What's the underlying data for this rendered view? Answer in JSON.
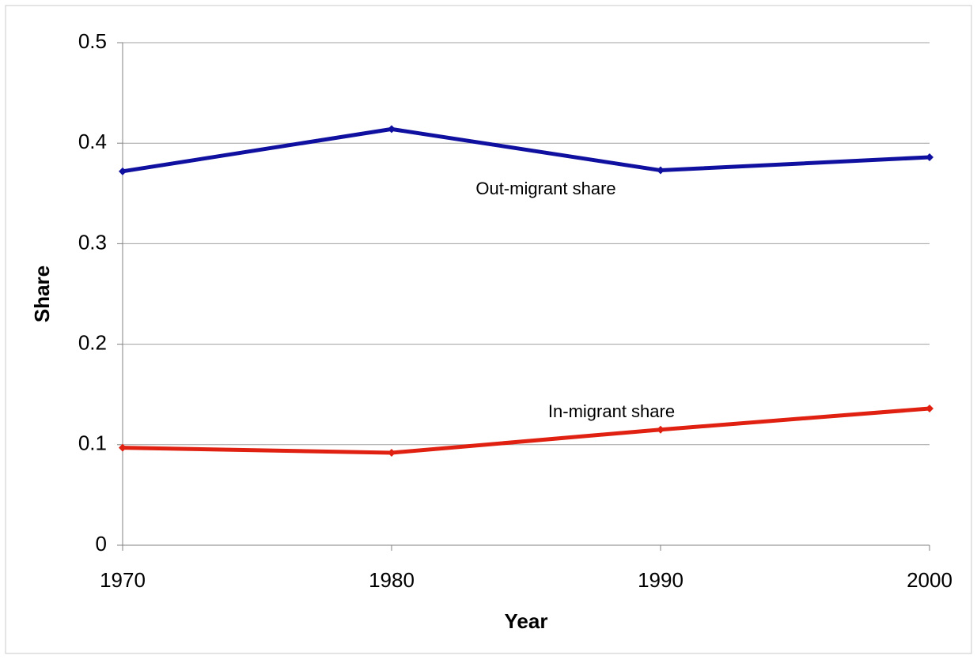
{
  "chart_data": {
    "type": "line",
    "x_label": "Year",
    "y_label": "Share",
    "x": [
      1970,
      1980,
      1990,
      2000
    ],
    "series": [
      {
        "name": "Out-migrant share",
        "color": "#1010a0",
        "values": [
          0.372,
          0.414,
          0.373,
          0.386
        ]
      },
      {
        "name": "In-migrant share",
        "color": "#e02010",
        "values": [
          0.097,
          0.092,
          0.115,
          0.136
        ]
      }
    ],
    "xlim": [
      1970,
      2000
    ],
    "xticks": [
      1970,
      1980,
      1990,
      2000
    ],
    "ylim": [
      0,
      0.5
    ],
    "yticks": [
      0,
      0.1,
      0.2,
      0.3,
      0.4,
      0.5
    ],
    "grid": true
  }
}
